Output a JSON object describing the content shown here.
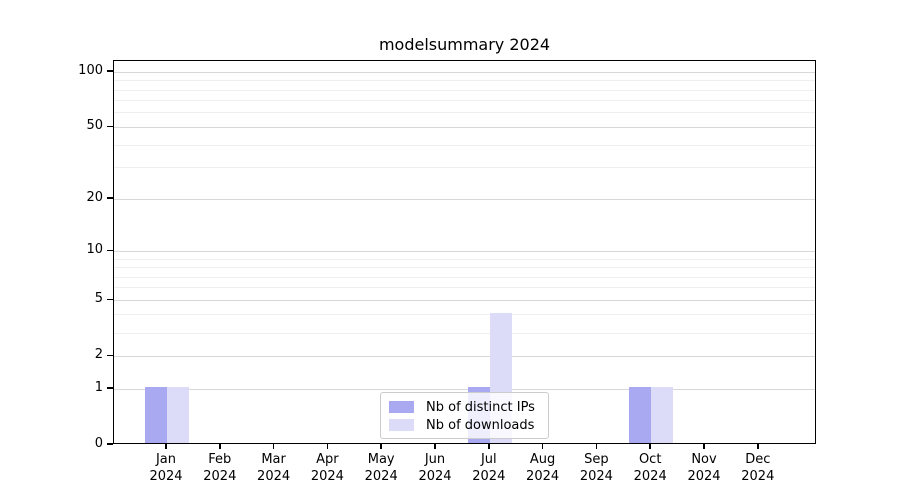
{
  "title": "modelsummary 2024",
  "colors": {
    "distinct_ips": "#a9a9f1",
    "downloads": "#dcdcf8",
    "major_grid": "#d8d8d8",
    "minor_grid": "#efefef",
    "spine": "#000000",
    "legend_border": "#cccccc"
  },
  "chart_data": {
    "type": "bar",
    "title": "modelsummary 2024",
    "categories": [
      "Jan 2024",
      "Feb 2024",
      "Mar 2024",
      "Apr 2024",
      "May 2024",
      "Jun 2024",
      "Jul 2024",
      "Aug 2024",
      "Sep 2024",
      "Oct 2024",
      "Nov 2024",
      "Dec 2024"
    ],
    "series": [
      {
        "name": "Nb of distinct IPs",
        "color": "#a9a9f1",
        "values": [
          1,
          0,
          0,
          0,
          0,
          0,
          1,
          0,
          0,
          1,
          0,
          0
        ]
      },
      {
        "name": "Nb of downloads",
        "color": "#dcdcf8",
        "values": [
          1,
          0,
          0,
          0,
          0,
          0,
          4,
          0,
          0,
          1,
          0,
          0
        ]
      }
    ],
    "xlabel": "",
    "ylabel": "",
    "yscale": "log1p",
    "ylim": [
      0,
      115
    ],
    "y_ticks": [
      0,
      1,
      2,
      5,
      10,
      20,
      50,
      100
    ],
    "y_minor_ticks": [
      3,
      4,
      6,
      7,
      8,
      9,
      30,
      40,
      60,
      70,
      80,
      90
    ],
    "grid": "horizontal",
    "legend_position": "lower center"
  }
}
